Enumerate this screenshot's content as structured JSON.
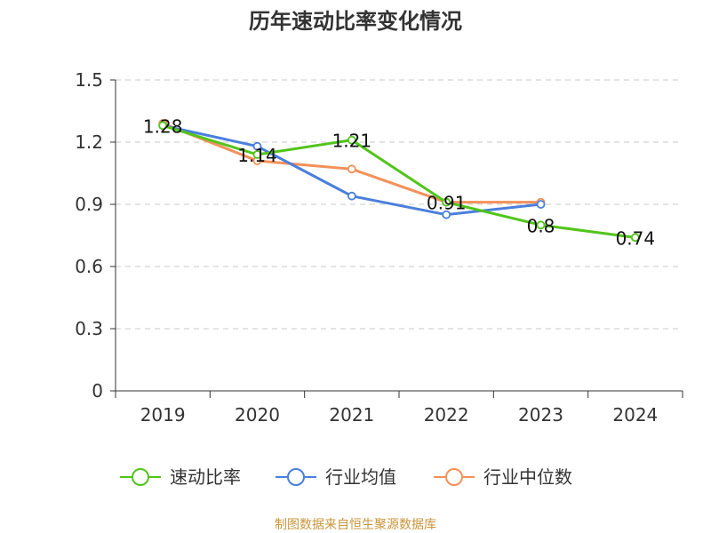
{
  "chart_data": {
    "type": "line",
    "title": "历年速动比率变化情况",
    "categories": [
      "2019",
      "2020",
      "2021",
      "2022",
      "2023",
      "2024"
    ],
    "y_ticks": [
      "0",
      "0.3",
      "0.6",
      "0.9",
      "1.2",
      "1.5"
    ],
    "ylim": [
      0,
      1.5
    ],
    "grid": true,
    "legend_position": "bottom",
    "series": [
      {
        "name": "速动比率",
        "color": "#52c41a",
        "values": [
          1.28,
          1.14,
          1.21,
          0.91,
          0.8,
          0.74
        ],
        "labels": [
          "1.28",
          "1.14",
          "1.21",
          "0.91",
          "0.8",
          "0.74"
        ],
        "show_labels": true
      },
      {
        "name": "行业均值",
        "color": "#4a7fdc",
        "values": [
          1.28,
          1.18,
          0.94,
          0.85,
          0.9,
          null
        ],
        "show_labels": false
      },
      {
        "name": "行业中位数",
        "color": "#f4905a",
        "values": [
          1.29,
          1.11,
          1.07,
          0.91,
          0.91,
          null
        ],
        "show_labels": false
      }
    ]
  },
  "source_text": "制图数据来自恒生聚源数据库",
  "source_color": "#c8963c"
}
